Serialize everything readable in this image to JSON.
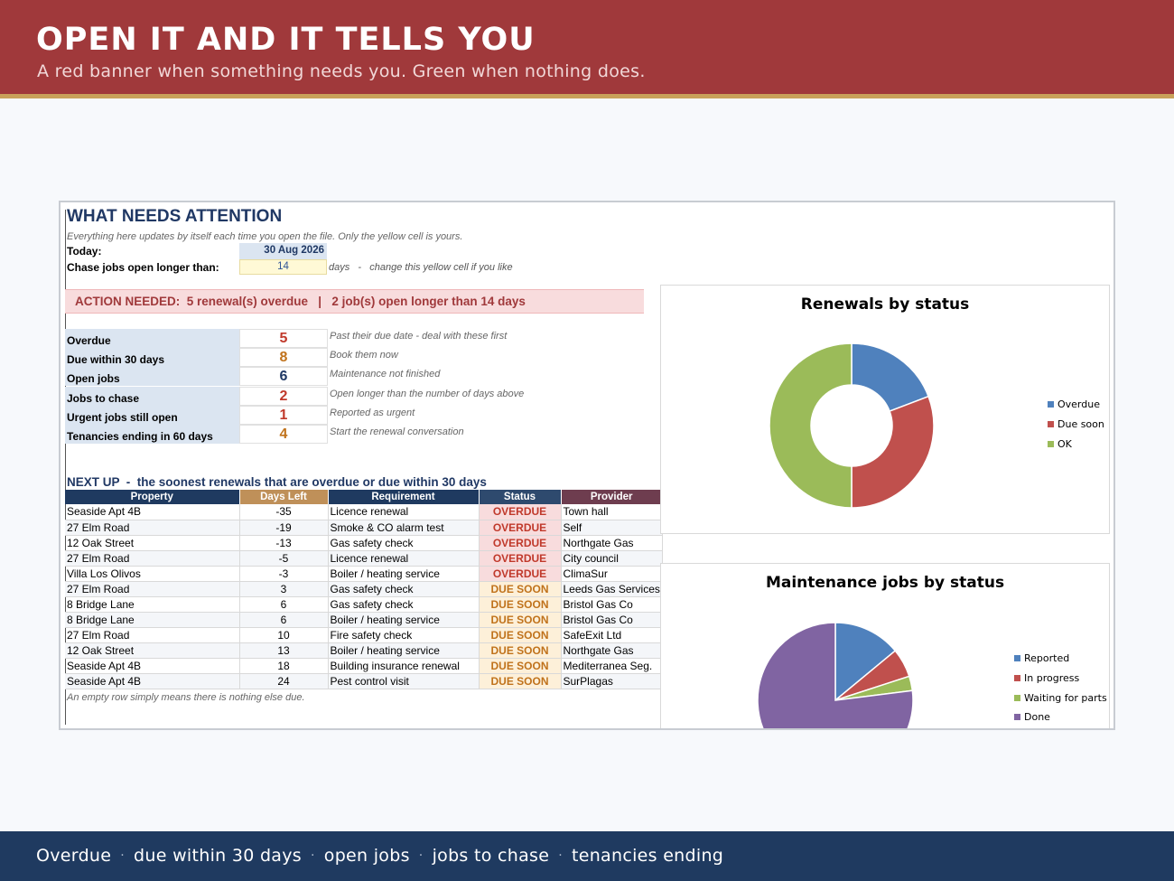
{
  "banner": {
    "title": "OPEN IT AND IT TELLS YOU",
    "subtitle": "A red banner when something needs you. Green when nothing does."
  },
  "footer": {
    "items": [
      "Overdue",
      "due within 30 days",
      "open jobs",
      "jobs to chase",
      "tenancies ending"
    ],
    "separator": "·"
  },
  "sheet": {
    "title": "WHAT NEEDS ATTENTION",
    "note": "Everything here updates by itself each time you open the file. Only the yellow cell is yours.",
    "today_label": "Today:",
    "today_value": "30 Aug 2026",
    "chase_label": "Chase jobs open longer than:",
    "chase_value": "14",
    "chase_note": "days   -   change this yellow cell if you like",
    "alert": "ACTION NEEDED:  5 renewal(s) overdue   |   2 job(s) open longer than 14 days",
    "summary": [
      {
        "label": "Overdue",
        "value": "5",
        "color": "#c0392b",
        "note": "Past their due date - deal with these first"
      },
      {
        "label": "Due within 30 days",
        "value": "8",
        "color": "#c0721b",
        "note": "Book them now"
      },
      {
        "label": "Open jobs",
        "value": "6",
        "color": "#1f3864",
        "note": "Maintenance not finished"
      },
      {
        "label": "Jobs to chase",
        "value": "2",
        "color": "#c0392b",
        "note": "Open longer than the number of days above"
      },
      {
        "label": "Urgent jobs still open",
        "value": "1",
        "color": "#c0392b",
        "note": "Reported as urgent"
      },
      {
        "label": "Tenancies ending in 60 days",
        "value": "4",
        "color": "#c0721b",
        "note": "Start the renewal conversation"
      }
    ],
    "next_up_title": "NEXT UP  -  the soonest renewals that are overdue or due within 30 days",
    "table": {
      "headers": [
        "Property",
        "Days Left",
        "Requirement",
        "Status",
        "Provider"
      ],
      "header_colors": [
        "#1f3a60",
        "#bf9059",
        "#1f3a60",
        "#2e4a6e",
        "#6e3d4f"
      ],
      "rows": [
        [
          "Seaside Apt 4B",
          "-35",
          "Licence renewal",
          "OVERDUE",
          "Town hall"
        ],
        [
          "27 Elm Road",
          "-19",
          "Smoke & CO alarm test",
          "OVERDUE",
          "Self"
        ],
        [
          "12 Oak Street",
          "-13",
          "Gas safety check",
          "OVERDUE",
          "Northgate Gas"
        ],
        [
          "27 Elm Road",
          "-5",
          "Licence renewal",
          "OVERDUE",
          "City council"
        ],
        [
          "Villa Los Olivos",
          "-3",
          "Boiler / heating service",
          "OVERDUE",
          "ClimaSur"
        ],
        [
          "27 Elm Road",
          "3",
          "Gas safety check",
          "DUE SOON",
          "Leeds Gas Services"
        ],
        [
          "8 Bridge Lane",
          "6",
          "Gas safety check",
          "DUE SOON",
          "Bristol Gas Co"
        ],
        [
          "8 Bridge Lane",
          "6",
          "Boiler / heating service",
          "DUE SOON",
          "Bristol Gas Co"
        ],
        [
          "27 Elm Road",
          "10",
          "Fire safety check",
          "DUE SOON",
          "SafeExit Ltd"
        ],
        [
          "12 Oak Street",
          "13",
          "Boiler / heating service",
          "DUE SOON",
          "Northgate Gas"
        ],
        [
          "Seaside Apt 4B",
          "18",
          "Building insurance renewal",
          "DUE SOON",
          "Mediterranea Seg."
        ],
        [
          "Seaside Apt 4B",
          "24",
          "Pest control visit",
          "DUE SOON",
          "SurPlagas"
        ]
      ]
    },
    "footer_note": "An empty row simply means there is nothing else due."
  },
  "chart_data": [
    {
      "type": "pie",
      "variant": "doughnut",
      "title": "Renewals by status",
      "categories": [
        "Overdue",
        "Due soon",
        "OK"
      ],
      "values": [
        5,
        8,
        13
      ],
      "colors": [
        "#4f81bd",
        "#c0504d",
        "#9bbb59"
      ],
      "legend": "right"
    },
    {
      "type": "pie",
      "title": "Maintenance jobs by status",
      "categories": [
        "Reported",
        "In progress",
        "Waiting for parts",
        "Done"
      ],
      "values": [
        14,
        6,
        3,
        77
      ],
      "colors": [
        "#4f81bd",
        "#c0504d",
        "#9bbb59",
        "#8064a2"
      ],
      "legend": "right"
    }
  ]
}
